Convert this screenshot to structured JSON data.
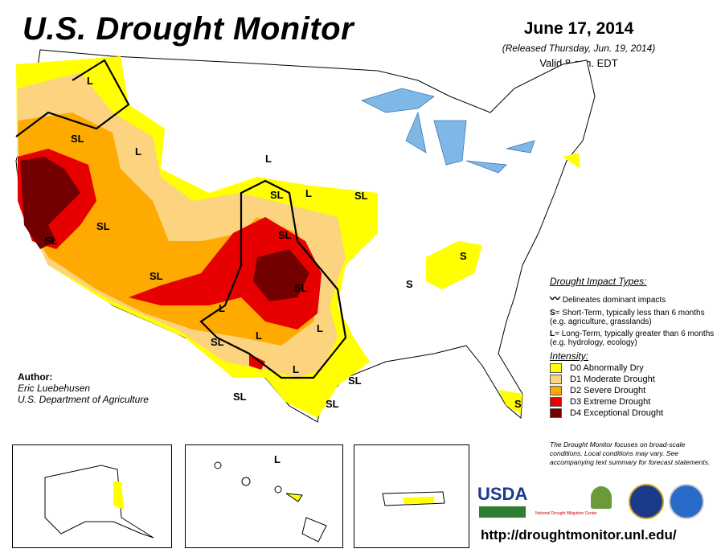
{
  "header": {
    "title": "U.S. Drought Monitor",
    "date": "June 17, 2014",
    "released": "(Released Thursday, Jun. 19, 2014)",
    "valid": "Valid 8 a.m. EDT"
  },
  "map_labels": [
    "L",
    "SL",
    "L",
    "L",
    "SL",
    "L",
    "SL",
    "SL",
    "SL",
    "SL",
    "S",
    "SL",
    "S",
    "SL",
    "L",
    "L",
    "SL",
    "L",
    "L",
    "SL",
    "SL",
    "SL",
    "S"
  ],
  "hawaii_label": "L",
  "author": {
    "heading": "Author:",
    "name": "Eric Luebehusen",
    "org": "U.S. Department of Agriculture"
  },
  "legend": {
    "impact_title": "Drought Impact Types:",
    "delineates": "Delineates dominant impacts",
    "s_key": "S",
    "s_text": "= Short-Term, typically less than 6 months (e.g. agriculture, grasslands)",
    "l_key": "L",
    "l_text": "= Long-Term, typically greater than 6 months (e.g. hydrology, ecology)",
    "intensity_title": "Intensity:",
    "intensity": [
      {
        "label": "D0 Abnormally Dry",
        "color": "#ffff00"
      },
      {
        "label": "D1 Moderate Drought",
        "color": "#fcd37f"
      },
      {
        "label": "D2 Severe Drought",
        "color": "#ffaa00"
      },
      {
        "label": "D3 Extreme Drought",
        "color": "#e60000"
      },
      {
        "label": "D4 Exceptional Drought",
        "color": "#730000"
      }
    ],
    "note": "The Drought Monitor focuses on broad-scale conditions. Local conditions may vary. See accompanying text summary for forecast statements."
  },
  "logos": {
    "usda": "USDA",
    "ndmc": "National Drought Mitigation Center"
  },
  "url": "http://droughtmonitor.unl.edu/"
}
